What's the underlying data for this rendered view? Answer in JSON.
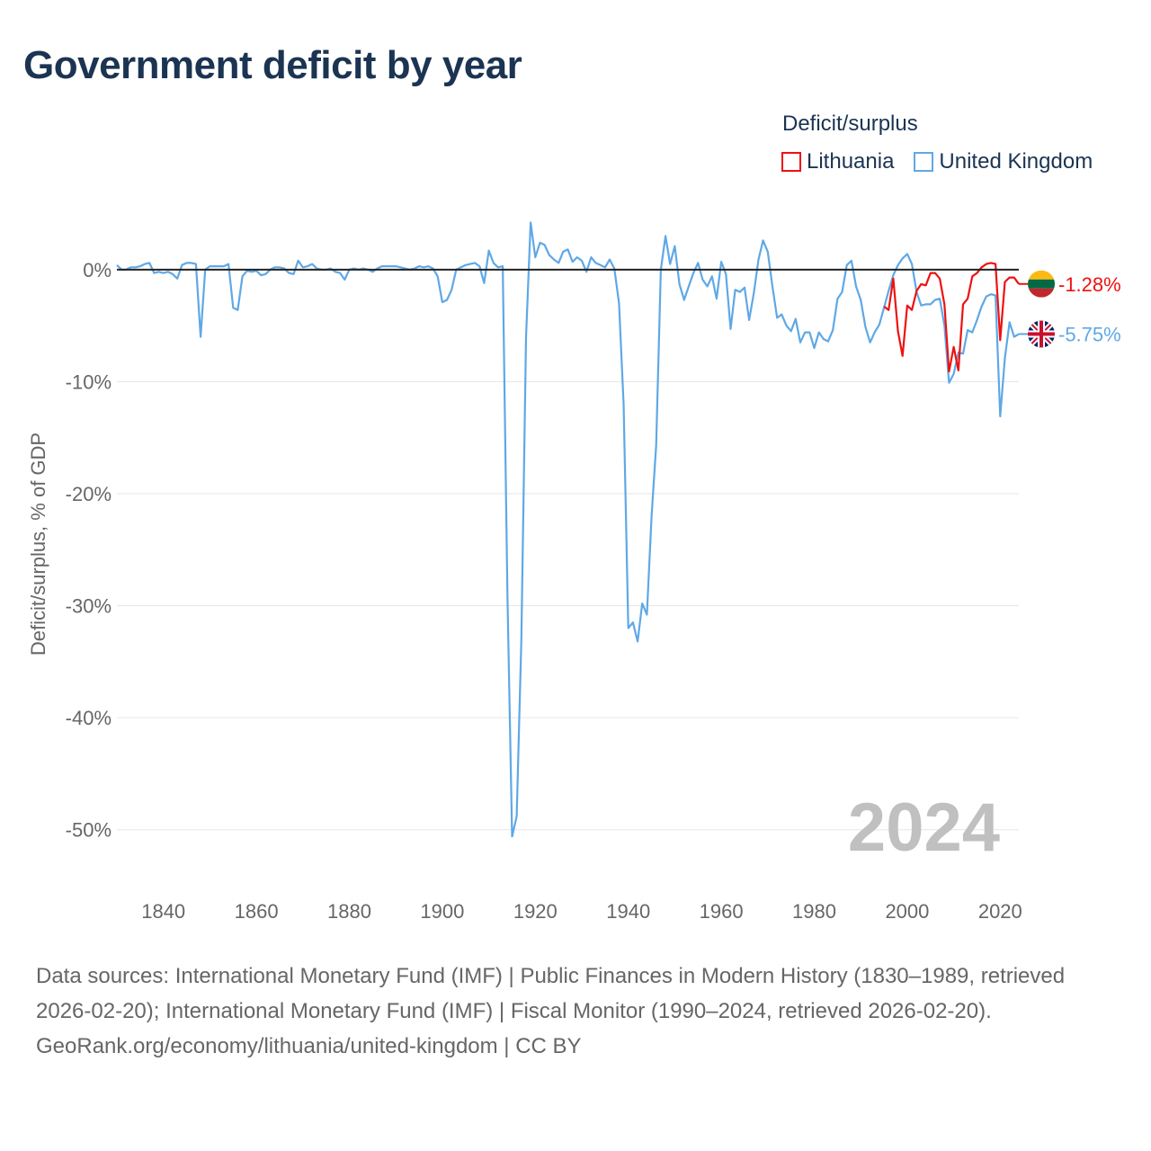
{
  "title": "Government deficit by year",
  "legend": {
    "title": "Deficit/surplus",
    "items": [
      {
        "label": "Lithuania",
        "color": "#ee1111"
      },
      {
        "label": "United Kingdom",
        "color": "#5fa8e6"
      }
    ]
  },
  "footer": {
    "sources": "Data sources: International Monetary Fund (IMF) | Public Finances in Modern History (1830–1989, retrieved 2026-02-20); International Monetary Fund (IMF) | Fiscal Monitor (1990–2024, retrieved 2026-02-20).",
    "link": "GeoRank.org/economy/lithuania/united-kingdom | CC BY"
  },
  "chart_data": {
    "type": "line",
    "title": "Government deficit by year",
    "xlabel": "",
    "ylabel": "Deficit/surplus, % of GDP",
    "xlim": [
      1830,
      2024
    ],
    "ylim": [
      -55,
      4
    ],
    "x_ticks": [
      1840,
      1860,
      1880,
      1900,
      1920,
      1940,
      1960,
      1980,
      2000,
      2020
    ],
    "y_ticks": [
      0,
      -10,
      -20,
      -30,
      -40,
      -50
    ],
    "y_tick_labels": [
      "0%",
      "-10%",
      "-20%",
      "-30%",
      "-40%",
      "-50%"
    ],
    "current_year_label": "2024",
    "series": [
      {
        "name": "United Kingdom",
        "color": "#5fa8e6",
        "end_label": "-5.75%",
        "points": [
          [
            1830,
            0.4
          ],
          [
            1831,
            0.0
          ],
          [
            1832,
            0.0
          ],
          [
            1833,
            0.2
          ],
          [
            1834,
            0.2
          ],
          [
            1835,
            0.3
          ],
          [
            1836,
            0.5
          ],
          [
            1837,
            0.6
          ],
          [
            1838,
            -0.3
          ],
          [
            1839,
            -0.2
          ],
          [
            1840,
            -0.3
          ],
          [
            1841,
            -0.2
          ],
          [
            1842,
            -0.4
          ],
          [
            1843,
            -0.8
          ],
          [
            1844,
            0.4
          ],
          [
            1845,
            0.6
          ],
          [
            1846,
            0.6
          ],
          [
            1847,
            0.5
          ],
          [
            1848,
            -6.0
          ],
          [
            1849,
            0.0
          ],
          [
            1850,
            0.3
          ],
          [
            1851,
            0.3
          ],
          [
            1852,
            0.3
          ],
          [
            1853,
            0.3
          ],
          [
            1854,
            0.5
          ],
          [
            1855,
            -3.4
          ],
          [
            1856,
            -3.6
          ],
          [
            1857,
            -0.6
          ],
          [
            1858,
            -0.1
          ],
          [
            1859,
            -0.2
          ],
          [
            1860,
            -0.1
          ],
          [
            1861,
            -0.5
          ],
          [
            1862,
            -0.4
          ],
          [
            1863,
            0.0
          ],
          [
            1864,
            0.2
          ],
          [
            1865,
            0.2
          ],
          [
            1866,
            0.1
          ],
          [
            1867,
            -0.3
          ],
          [
            1868,
            -0.4
          ],
          [
            1869,
            0.8
          ],
          [
            1870,
            0.2
          ],
          [
            1871,
            0.3
          ],
          [
            1872,
            0.5
          ],
          [
            1873,
            0.1
          ],
          [
            1874,
            0.0
          ],
          [
            1875,
            0.0
          ],
          [
            1876,
            0.1
          ],
          [
            1877,
            -0.2
          ],
          [
            1878,
            -0.3
          ],
          [
            1879,
            -0.9
          ],
          [
            1880,
            0.0
          ],
          [
            1881,
            0.1
          ],
          [
            1882,
            0.0
          ],
          [
            1883,
            0.1
          ],
          [
            1884,
            0.0
          ],
          [
            1885,
            -0.2
          ],
          [
            1886,
            0.1
          ],
          [
            1887,
            0.3
          ],
          [
            1888,
            0.3
          ],
          [
            1889,
            0.3
          ],
          [
            1890,
            0.3
          ],
          [
            1891,
            0.2
          ],
          [
            1892,
            0.1
          ],
          [
            1893,
            0.0
          ],
          [
            1894,
            0.1
          ],
          [
            1895,
            0.3
          ],
          [
            1896,
            0.2
          ],
          [
            1897,
            0.3
          ],
          [
            1898,
            0.1
          ],
          [
            1899,
            -0.6
          ],
          [
            1900,
            -2.9
          ],
          [
            1901,
            -2.7
          ],
          [
            1902,
            -1.8
          ],
          [
            1903,
            0.0
          ],
          [
            1904,
            0.2
          ],
          [
            1905,
            0.4
          ],
          [
            1906,
            0.5
          ],
          [
            1907,
            0.6
          ],
          [
            1908,
            0.3
          ],
          [
            1909,
            -1.2
          ],
          [
            1910,
            1.7
          ],
          [
            1911,
            0.6
          ],
          [
            1912,
            0.2
          ],
          [
            1913,
            0.3
          ],
          [
            1914,
            -29.0
          ],
          [
            1915,
            -50.6
          ],
          [
            1916,
            -48.8
          ],
          [
            1917,
            -33.0
          ],
          [
            1918,
            -6.0
          ],
          [
            1919,
            4.2
          ],
          [
            1920,
            1.1
          ],
          [
            1921,
            2.4
          ],
          [
            1922,
            2.2
          ],
          [
            1923,
            1.3
          ],
          [
            1924,
            0.9
          ],
          [
            1925,
            0.6
          ],
          [
            1926,
            1.6
          ],
          [
            1927,
            1.8
          ],
          [
            1928,
            0.7
          ],
          [
            1929,
            1.1
          ],
          [
            1930,
            0.8
          ],
          [
            1931,
            -0.2
          ],
          [
            1932,
            1.1
          ],
          [
            1933,
            0.6
          ],
          [
            1934,
            0.4
          ],
          [
            1935,
            0.2
          ],
          [
            1936,
            0.9
          ],
          [
            1937,
            0.1
          ],
          [
            1938,
            -3.0
          ],
          [
            1939,
            -12.0
          ],
          [
            1940,
            -32.0
          ],
          [
            1941,
            -31.5
          ],
          [
            1942,
            -33.2
          ],
          [
            1943,
            -29.8
          ],
          [
            1944,
            -30.8
          ],
          [
            1945,
            -22.0
          ],
          [
            1946,
            -15.7
          ],
          [
            1947,
            0.0
          ],
          [
            1948,
            3.0
          ],
          [
            1949,
            0.5
          ],
          [
            1950,
            2.1
          ],
          [
            1951,
            -1.3
          ],
          [
            1952,
            -2.7
          ],
          [
            1953,
            -1.5
          ],
          [
            1954,
            -0.3
          ],
          [
            1955,
            0.6
          ],
          [
            1956,
            -0.9
          ],
          [
            1957,
            -1.5
          ],
          [
            1958,
            -0.6
          ],
          [
            1959,
            -2.6
          ],
          [
            1960,
            0.7
          ],
          [
            1961,
            -0.4
          ],
          [
            1962,
            -5.3
          ],
          [
            1963,
            -1.8
          ],
          [
            1964,
            -2.0
          ],
          [
            1965,
            -1.6
          ],
          [
            1966,
            -4.5
          ],
          [
            1967,
            -2.1
          ],
          [
            1968,
            0.9
          ],
          [
            1969,
            2.6
          ],
          [
            1970,
            1.6
          ],
          [
            1971,
            -1.5
          ],
          [
            1972,
            -4.3
          ],
          [
            1973,
            -4.0
          ],
          [
            1974,
            -5.0
          ],
          [
            1975,
            -5.5
          ],
          [
            1976,
            -4.4
          ],
          [
            1977,
            -6.5
          ],
          [
            1978,
            -5.6
          ],
          [
            1979,
            -5.6
          ],
          [
            1980,
            -7.0
          ],
          [
            1981,
            -5.6
          ],
          [
            1982,
            -6.2
          ],
          [
            1983,
            -6.4
          ],
          [
            1984,
            -5.4
          ],
          [
            1985,
            -2.6
          ],
          [
            1986,
            -2.0
          ],
          [
            1987,
            0.4
          ],
          [
            1988,
            0.8
          ],
          [
            1989,
            -1.5
          ],
          [
            1990,
            -2.7
          ],
          [
            1991,
            -5.1
          ],
          [
            1992,
            -6.5
          ],
          [
            1993,
            -5.6
          ],
          [
            1994,
            -4.9
          ],
          [
            1995,
            -3.4
          ],
          [
            1996,
            -1.9
          ],
          [
            1997,
            -0.5
          ],
          [
            1998,
            0.4
          ],
          [
            1999,
            1.0
          ],
          [
            2000,
            1.4
          ],
          [
            2001,
            0.5
          ],
          [
            2002,
            -2.0
          ],
          [
            2003,
            -3.2
          ],
          [
            2004,
            -3.1
          ],
          [
            2005,
            -3.1
          ],
          [
            2006,
            -2.7
          ],
          [
            2007,
            -2.6
          ],
          [
            2008,
            -5.0
          ],
          [
            2009,
            -10.1
          ],
          [
            2010,
            -9.3
          ],
          [
            2011,
            -7.4
          ],
          [
            2012,
            -7.5
          ],
          [
            2013,
            -5.4
          ],
          [
            2014,
            -5.6
          ],
          [
            2015,
            -4.5
          ],
          [
            2016,
            -3.3
          ],
          [
            2017,
            -2.4
          ],
          [
            2018,
            -2.2
          ],
          [
            2019,
            -2.3
          ],
          [
            2020,
            -13.1
          ],
          [
            2021,
            -7.9
          ],
          [
            2022,
            -4.7
          ],
          [
            2023,
            -6.0
          ],
          [
            2024,
            -5.75
          ]
        ]
      },
      {
        "name": "Lithuania",
        "color": "#ee1111",
        "end_label": "-1.28%",
        "points": [
          [
            1995,
            -3.3
          ],
          [
            1996,
            -3.6
          ],
          [
            1997,
            -0.8
          ],
          [
            1998,
            -5.5
          ],
          [
            1999,
            -7.7
          ],
          [
            2000,
            -3.2
          ],
          [
            2001,
            -3.6
          ],
          [
            2002,
            -1.9
          ],
          [
            2003,
            -1.3
          ],
          [
            2004,
            -1.4
          ],
          [
            2005,
            -0.3
          ],
          [
            2006,
            -0.3
          ],
          [
            2007,
            -0.8
          ],
          [
            2008,
            -3.1
          ],
          [
            2009,
            -9.1
          ],
          [
            2010,
            -6.9
          ],
          [
            2011,
            -9.0
          ],
          [
            2012,
            -3.1
          ],
          [
            2013,
            -2.6
          ],
          [
            2014,
            -0.6
          ],
          [
            2015,
            -0.3
          ],
          [
            2016,
            0.2
          ],
          [
            2017,
            0.5
          ],
          [
            2018,
            0.6
          ],
          [
            2019,
            0.5
          ],
          [
            2020,
            -6.3
          ],
          [
            2021,
            -1.1
          ],
          [
            2022,
            -0.7
          ],
          [
            2023,
            -0.7
          ],
          [
            2024,
            -1.28
          ]
        ]
      }
    ]
  }
}
